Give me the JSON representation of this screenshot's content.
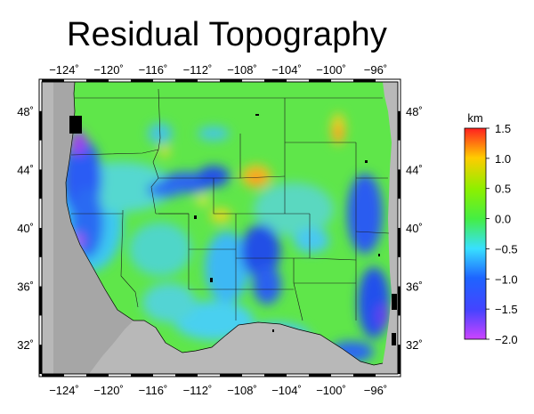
{
  "title": "Residual Topography",
  "map": {
    "lon_min": -126,
    "lon_max": -94,
    "lat_min": 30,
    "lat_max": 50,
    "lon_ticks": [
      "−124˚",
      "−120˚",
      "−116˚",
      "−112˚",
      "−108˚",
      "−104˚",
      "−100˚",
      "−96˚"
    ],
    "lat_ticks": [
      "48˚",
      "44˚",
      "40˚",
      "36˚",
      "32˚"
    ],
    "ocean_color": "#a6a6a6",
    "nodata_color": "#b4b4b4"
  },
  "colorbar": {
    "unit": "km",
    "range": [
      -2.0,
      1.5
    ],
    "tick_labels": [
      "1.5",
      "1.0",
      "0.5",
      "0.0",
      "−0.5",
      "−1.0",
      "−1.5",
      "−2.0"
    ],
    "colors": [
      "#cc44ff",
      "#4444ff",
      "#1e64ff",
      "#38e0ff",
      "#44ee44",
      "#8cf000",
      "#ffcc00",
      "#ff2020"
    ]
  }
}
